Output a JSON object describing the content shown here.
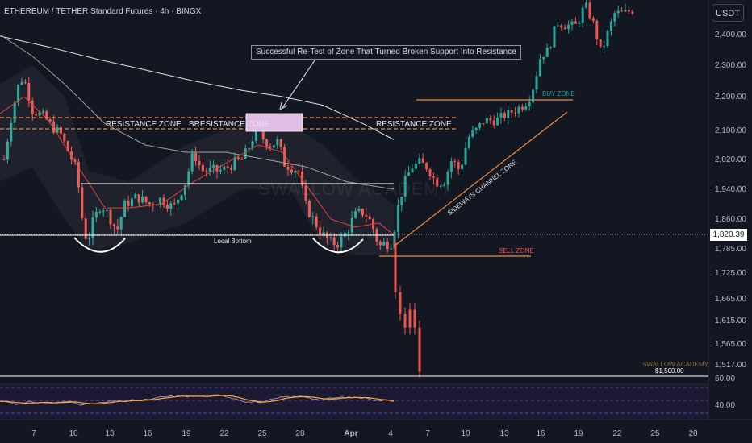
{
  "header": {
    "title": "ETHEREUM / TETHER Standard Futures · 4h · BINGX",
    "currency": "USDT"
  },
  "annotations": {
    "callout": "Successful Re-Test of Zone That Turned Broken Support Into Resistance",
    "resistance_zone_left": "RESISTANCE ZONE",
    "resistance_zone_mid": "BRESISTANCE ZONE",
    "resistance_zone_right": "RESISTANCE ZONE",
    "local_bottom": "Local Bottom",
    "buy_zone": "BUY ZONE",
    "sell_zone": "SELL ZONE",
    "sideways_channel": "SIDEWAYS CHANNEL ZONE",
    "watermark": "SWALLOW ACADEMY",
    "swallow_label": "SWALLOW ACADEMY",
    "target_label": "$1,500.00"
  },
  "current_price": "1,820.39",
  "colors": {
    "bg": "#131722",
    "up": "#26a69a",
    "down": "#ef5350",
    "zone_line": "#f0883e",
    "highlight": "#e1bee7"
  },
  "chart_data": {
    "type": "candlestick",
    "y_ticks": [
      "2,400.00",
      "2,300.00",
      "2,200.00",
      "2,100.00",
      "2,020.00",
      "1,940.00",
      "1,860.00",
      "1,785.00",
      "1,725.00",
      "1,665.00",
      "1,615.00",
      "1,565.00",
      "1,517.00"
    ],
    "x_ticks": [
      "7",
      "10",
      "13",
      "16",
      "19",
      "22",
      "25",
      "28",
      "Apr",
      "4",
      "7",
      "10",
      "13",
      "16",
      "19",
      "22",
      "25",
      "28"
    ],
    "rsi_ticks": [
      "60.00",
      "40.00"
    ],
    "levels": {
      "resistance_top": 2135,
      "resistance_bottom": 2110,
      "support": 1955,
      "local_bottom": 1822,
      "sell_zone": 1780,
      "buy_zone": 2180,
      "target": 1500
    }
  }
}
